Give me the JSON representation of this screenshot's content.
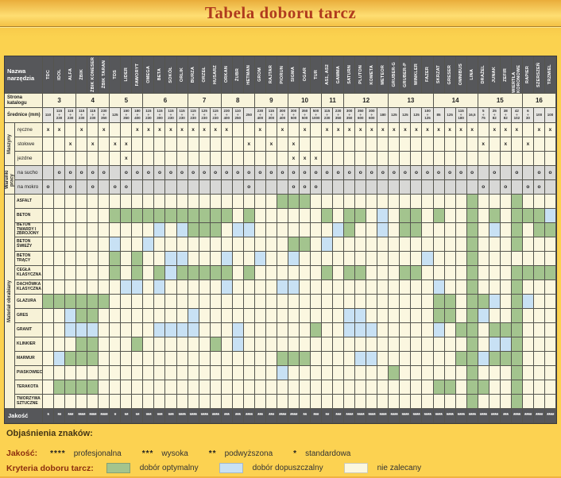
{
  "title": "Tabela doboru tarcz",
  "colors": {
    "optimal_green": "#a3c48e",
    "acceptable_blue": "#c8e1f4",
    "not_recommended_cream": "#fbf7e0",
    "header_gray": "#56575a",
    "page_gold": "#fcd251",
    "title_red": "#b03b1e"
  },
  "table": {
    "corner_label": "Nazwa narzędzia",
    "page_row_label": "Strona katalogu",
    "diameter_row_label": "Średnice (mm)",
    "quality_row_label": "Jakość",
    "sections": {
      "machines": "Maszyny",
      "conditions": "Warunki pracy",
      "material": "Materiał obrabiany"
    },
    "columns": [
      {
        "name": "TDC",
        "diameter": "110"
      },
      {
        "name": "IDOL",
        "diameter": "115÷230"
      },
      {
        "name": "ALFA",
        "diameter": "115÷230"
      },
      {
        "name": "ŻBIK",
        "diameter": "115÷230"
      },
      {
        "name": "ŻBIK KONESER",
        "diameter": "115÷230"
      },
      {
        "name": "ŻBIK TARAN",
        "diameter": "230÷350"
      },
      {
        "name": "TDS",
        "diameter": "125"
      },
      {
        "name": "LIDER",
        "diameter": "150÷350"
      },
      {
        "name": "FAWORYT",
        "diameter": "180÷400"
      },
      {
        "name": "OMEGA",
        "diameter": "115÷230"
      },
      {
        "name": "BETA",
        "diameter": "115÷300"
      },
      {
        "name": "SOKÓŁ",
        "diameter": "115÷230"
      },
      {
        "name": "ORLIK",
        "diameter": "115÷230"
      },
      {
        "name": "BURZA",
        "diameter": "115÷230"
      },
      {
        "name": "ORZEŁ",
        "diameter": "125÷230"
      },
      {
        "name": "HUSARZ",
        "diameter": "115÷230"
      },
      {
        "name": "ORKAN",
        "diameter": "230÷400"
      },
      {
        "name": "ŻUBR",
        "diameter": "110÷250"
      },
      {
        "name": "HETMAN",
        "diameter": "250"
      },
      {
        "name": "GROM",
        "diameter": "230÷400"
      },
      {
        "name": "RAJTAR",
        "diameter": "115÷300"
      },
      {
        "name": "PIORUN",
        "diameter": "300÷400"
      },
      {
        "name": "SIGMA",
        "diameter": "300÷500"
      },
      {
        "name": "OGAR",
        "diameter": "350÷500"
      },
      {
        "name": "TUR",
        "diameter": "500÷1000"
      },
      {
        "name": "AS1, AS2",
        "diameter": "115÷230"
      },
      {
        "name": "GAMMA",
        "diameter": "230÷350"
      },
      {
        "name": "SATURN",
        "diameter": "300÷350"
      },
      {
        "name": "PLUTON",
        "diameter": "350÷600"
      },
      {
        "name": "KOMETA",
        "diameter": "300÷600"
      },
      {
        "name": "METEOR",
        "diameter": "180"
      },
      {
        "name": "GRUBER-G",
        "diameter": "125"
      },
      {
        "name": "GRUBER-P",
        "diameter": "125"
      },
      {
        "name": "WINKLER",
        "diameter": "125"
      },
      {
        "name": "FAZER",
        "diameter": "100÷125"
      },
      {
        "name": "SKRZAT",
        "diameter": "85"
      },
      {
        "name": "GRESER",
        "diameter": "125"
      },
      {
        "name": "OMNIBUS",
        "diameter": "115÷180"
      },
      {
        "name": "LINA",
        "diameter": "16,5"
      },
      {
        "name": "DRAŻEL",
        "diameter": "5÷75"
      },
      {
        "name": "JUNAK",
        "diameter": "25÷82"
      },
      {
        "name": "ZEFIR",
        "diameter": "38÷82"
      },
      {
        "name": "WIERTŁA KORONOWE",
        "diameter": "42÷102"
      },
      {
        "name": "RAPIER",
        "diameter": "6÷30"
      },
      {
        "name": "SZERSZEŃ",
        "diameter": "100"
      },
      {
        "name": "TRZMIEL",
        "diameter": "100"
      }
    ],
    "page_groups": [
      {
        "page": "3",
        "cols": 3
      },
      {
        "page": "4",
        "cols": 3
      },
      {
        "page": "5",
        "cols": 3
      },
      {
        "page": "6",
        "cols": 4
      },
      {
        "page": "7",
        "cols": 3
      },
      {
        "page": "8",
        "cols": 3
      },
      {
        "page": "9",
        "cols": 3
      },
      {
        "page": "10",
        "cols": 3
      },
      {
        "page": "11",
        "cols": 2
      },
      {
        "page": "12",
        "cols": 4
      },
      {
        "page": "13",
        "cols": 4
      },
      {
        "page": "14",
        "cols": 4
      },
      {
        "page": "15",
        "cols": 4
      },
      {
        "page": "16",
        "cols": 3
      }
    ],
    "machine_rows": [
      {
        "label": "ręczne",
        "marks": "xx.x.x..xxxxxxxxx..x.x.x.xxxxxxxxxxxxxx.xxx.xx"
      },
      {
        "label": "stołowe",
        "marks": "..x.x.xx..........x.x.x................x.x.x.."
      },
      {
        "label": "jezdne",
        "marks": ".......x..............xxx....................."
      }
    ],
    "condition_rows": [
      {
        "label": "na sucho",
        "marks": ".ooooo.oooooooooooooooooooooooooooooooo.o.o.oo"
      },
      {
        "label": "na mokro",
        "marks": "o.o.o.oo..........o...ooo..............o.o.oo."
      }
    ],
    "material_rows": [
      {
        "label": "ASFALT",
        "cells": ".....................GGG..............G...G..."
      },
      {
        "label": "BETON",
        "cells": "......GGGGGGGGGGG.G......G.GG.B.GG.G..G.G.GGGB"
      },
      {
        "label": "BETON TWARDY I ZBROJONY",
        "cells": "..........B.BGGG.BB.......BG..B.GG....G.B.G.GG"
      },
      {
        "label": "BETON ŚWIEŻY",
        "cells": "......B..B............GG.B............G...G..."
      },
      {
        "label": "BETON TRĄCY",
        "cells": "......G.G..BB...B..B..B...........B...G......."
      },
      {
        "label": "CEGŁA KLASYCZNA",
        "cells": "......G.G.GBGGGGG.G......G.GG...GG....G...GGGG"
      },
      {
        "label": "DACHÓWKA KLASYCZNA",
        "cells": ".......BB.B.....B....BB............B..G...G..."
      },
      {
        "label": "GLAZURA",
        "cells": "GGGGGG.............................GG.GGB.GB.."
      },
      {
        "label": "GRES",
        "cells": "..BGG........B.............BB......GG.GB..G..."
      },
      {
        "label": "GRANIT",
        "cells": "..BBB.....BBBB...B......G..BBB.....B.GG.GGG..."
      },
      {
        "label": "KLINKIER",
        "cells": "...GG...G......G.B....................G.BBG..."
      },
      {
        "label": "MARMUR",
        "cells": ".BGGG................GGG....BB.......GGBGGG..."
      },
      {
        "label": "PIASKOWIEC",
        "cells": ".....................B.........G......G...G..."
      },
      {
        "label": "TERAKOTA",
        "cells": ".GGGG..............................GG.GG..G..."
      },
      {
        "label": "TWORZYWA SZTUCZNE",
        "cells": "......................................G...G..."
      }
    ],
    "quality_stars": [
      "*",
      "**",
      "***",
      "****",
      "****",
      "****",
      "*",
      "**",
      "**",
      "***",
      "***",
      "***",
      "****",
      "****",
      "****",
      "****",
      "***",
      "***",
      "****",
      "***",
      "***",
      "****",
      "****",
      "**",
      "***",
      "**",
      "***",
      "****",
      "****",
      "****",
      "****",
      "****",
      "****",
      "****",
      "****",
      "****",
      "****",
      "****",
      "****",
      "****",
      "****",
      "***",
      "****",
      "****",
      "****",
      "****"
    ]
  },
  "legend": {
    "title": "Objaśnienia znaków:",
    "quality_label": "Jakość:",
    "quality_items": [
      {
        "stars": "****",
        "label": "profesjonalna"
      },
      {
        "stars": "***",
        "label": "wysoka"
      },
      {
        "stars": "**",
        "label": "podwyższona"
      },
      {
        "stars": "*",
        "label": "standardowa"
      }
    ],
    "criteria_label": "Kryteria doboru tarcz:",
    "criteria_items": [
      {
        "color": "#a3c48e",
        "label": "dobór optymalny"
      },
      {
        "color": "#c8e1f4",
        "label": "dobór dopuszczalny"
      },
      {
        "color": "#fbf7e0",
        "label": "nie zalecany"
      }
    ]
  }
}
